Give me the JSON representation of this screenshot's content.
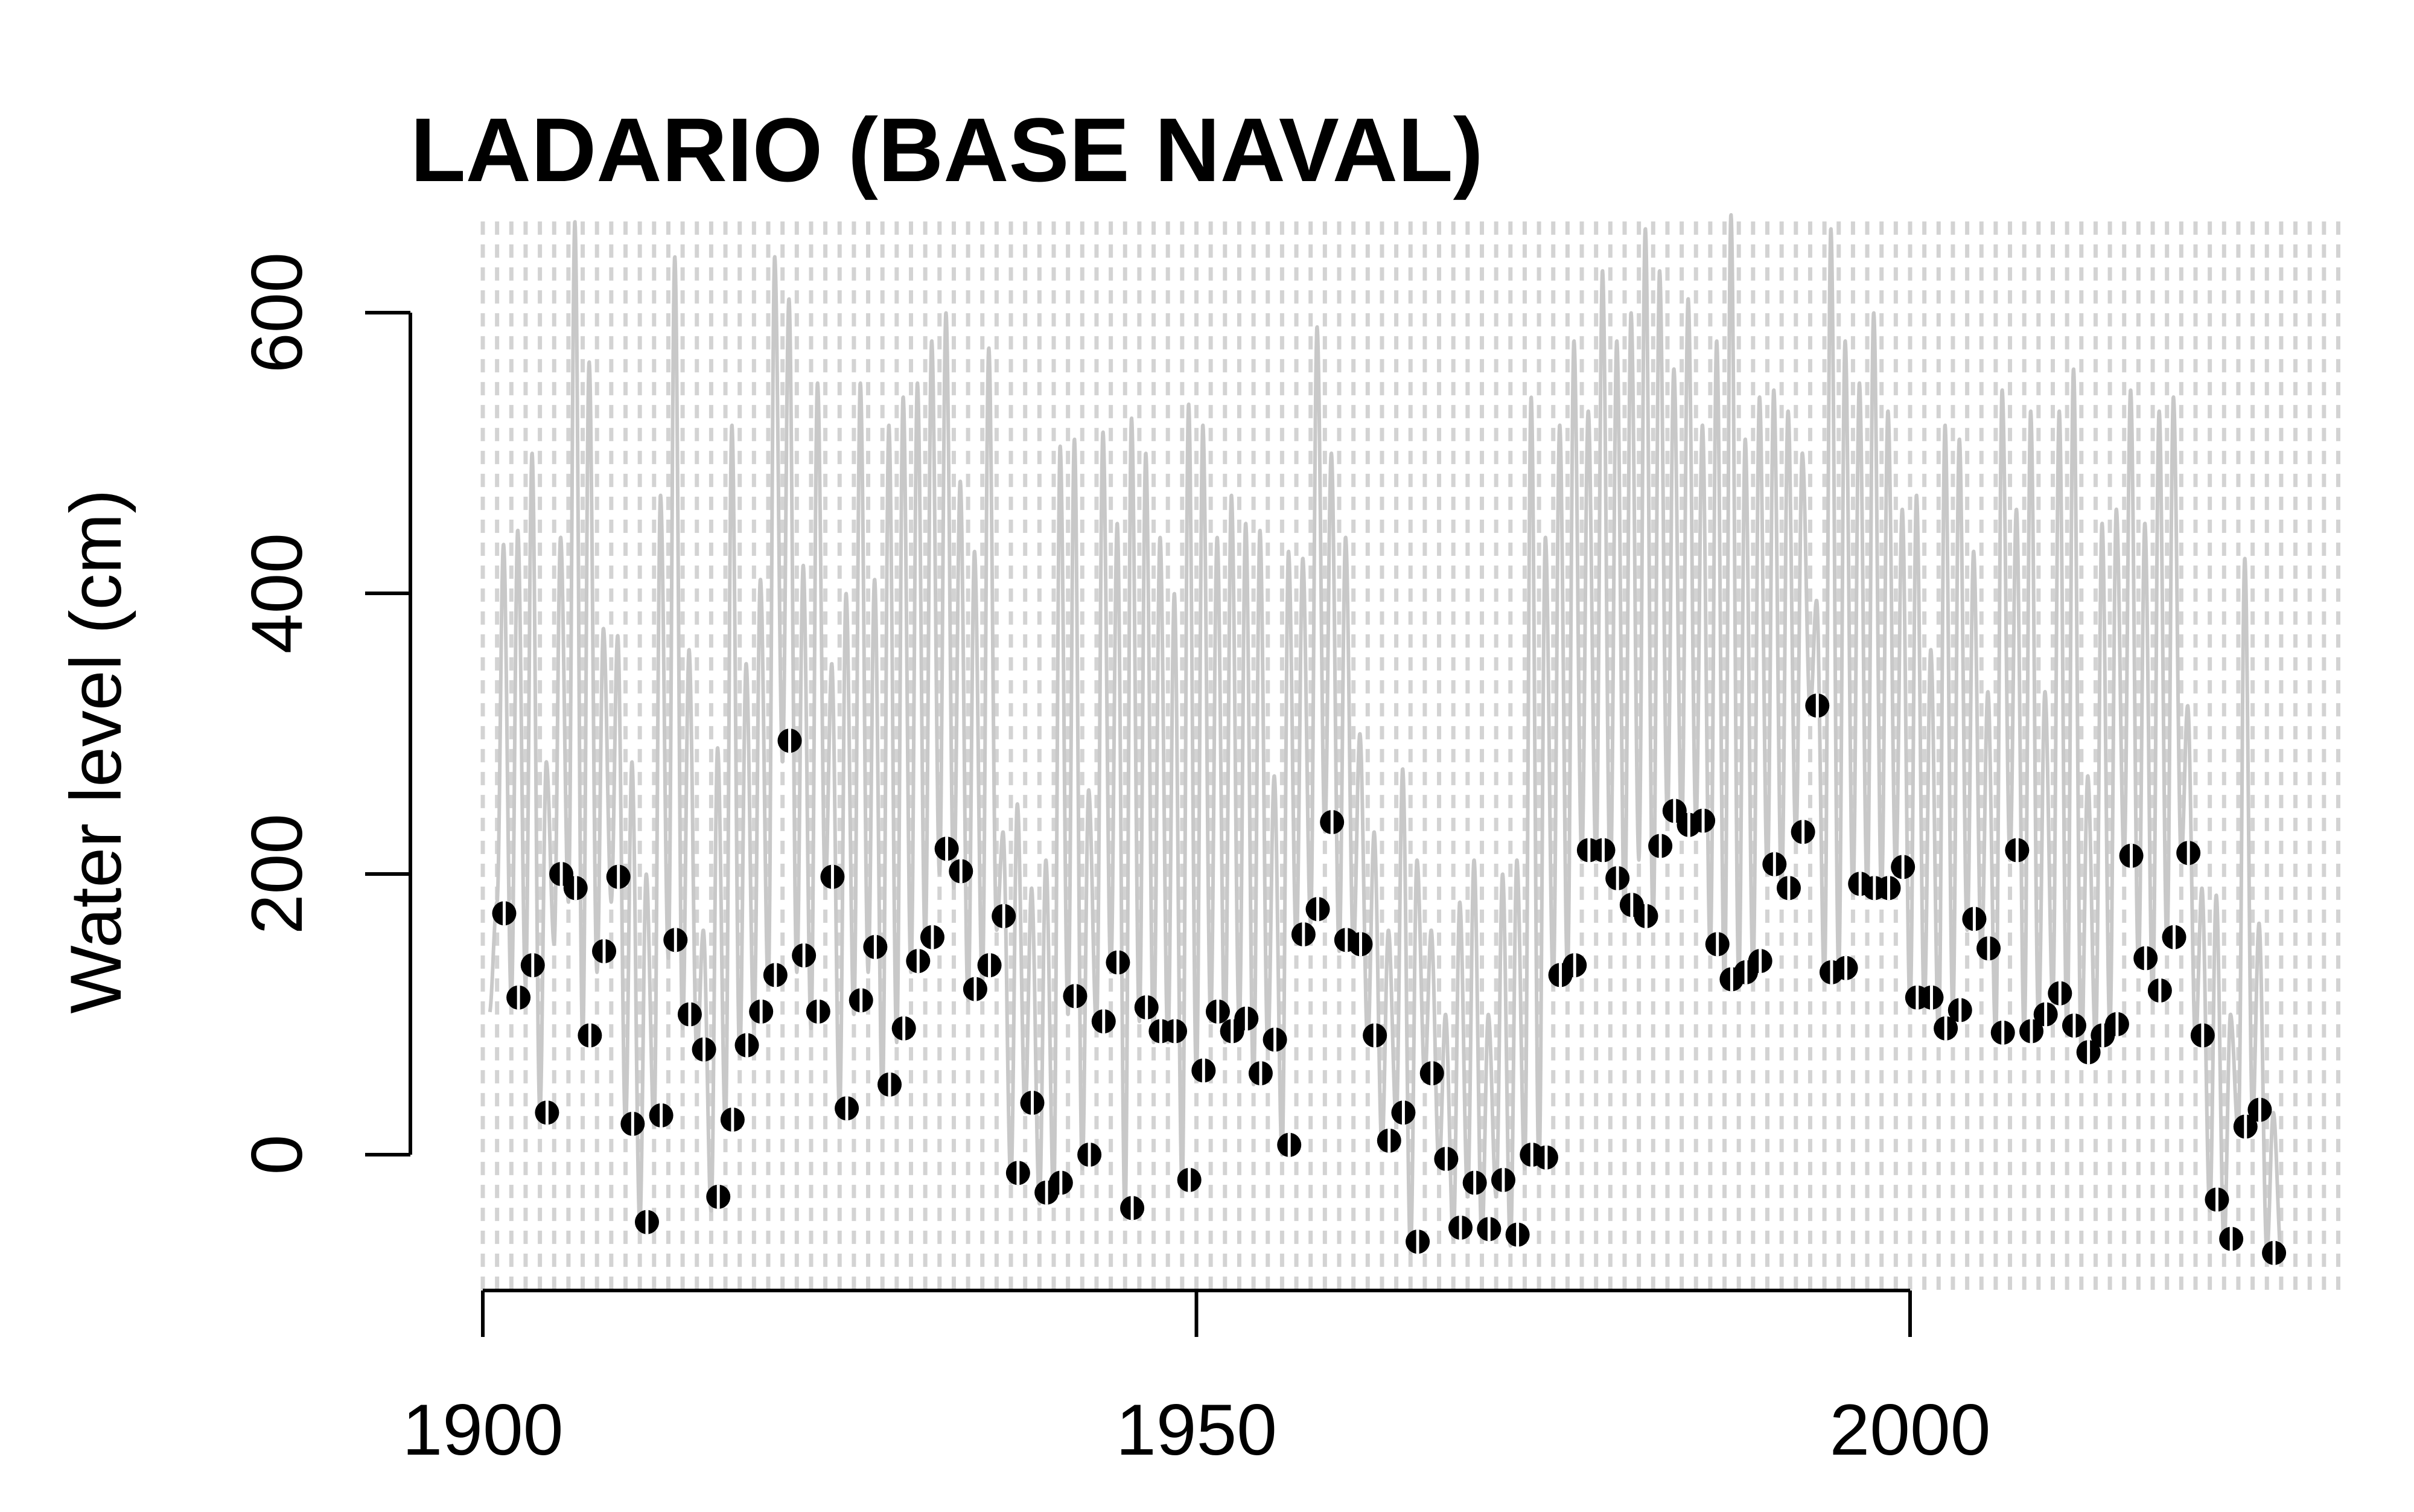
{
  "chart_data": {
    "type": "line",
    "title": "LADARIO (BASE NAVAL)",
    "xlabel": "",
    "ylabel": "Water level (cm)",
    "xlim": [
      1900,
      2030
    ],
    "ylim": [
      -80,
      665
    ],
    "x_ticks": [
      1900,
      1950,
      2000
    ],
    "x_tick_labels": [
      "1900",
      "1950",
      "2000"
    ],
    "y_ticks": [
      0,
      200,
      400,
      600
    ],
    "y_tick_labels": [
      "0",
      "200",
      "400",
      "600"
    ],
    "grid": "vertical dashed lines at each year",
    "colors": {
      "monthly_line": "#c8c8c8",
      "annual_points": "#000000",
      "grid": "#d3d3d3",
      "axis": "#000000"
    },
    "series": [
      {
        "style": "line",
        "description_color": "#c8c8c8",
        "annual_peaks": [
          [
            1901,
            435
          ],
          [
            1902,
            445
          ],
          [
            1903,
            500
          ],
          [
            1904,
            280
          ],
          [
            1905,
            440
          ],
          [
            1906,
            665
          ],
          [
            1907,
            565
          ],
          [
            1908,
            375
          ],
          [
            1909,
            370
          ],
          [
            1910,
            280
          ],
          [
            1911,
            200
          ],
          [
            1912,
            470
          ],
          [
            1913,
            640
          ],
          [
            1914,
            360
          ],
          [
            1915,
            160
          ],
          [
            1916,
            290
          ],
          [
            1917,
            520
          ],
          [
            1918,
            350
          ],
          [
            1919,
            410
          ],
          [
            1920,
            640
          ],
          [
            1921,
            610
          ],
          [
            1922,
            420
          ],
          [
            1923,
            550
          ],
          [
            1924,
            350
          ],
          [
            1925,
            400
          ],
          [
            1926,
            550
          ],
          [
            1927,
            410
          ],
          [
            1928,
            520
          ],
          [
            1929,
            540
          ],
          [
            1930,
            550
          ],
          [
            1931,
            580
          ],
          [
            1932,
            600
          ],
          [
            1933,
            480
          ],
          [
            1934,
            430
          ],
          [
            1935,
            575
          ],
          [
            1936,
            230
          ],
          [
            1937,
            250
          ],
          [
            1938,
            190
          ],
          [
            1939,
            210
          ],
          [
            1940,
            505
          ],
          [
            1941,
            510
          ],
          [
            1942,
            260
          ],
          [
            1943,
            515
          ],
          [
            1944,
            450
          ],
          [
            1945,
            525
          ],
          [
            1946,
            500
          ],
          [
            1947,
            440
          ],
          [
            1948,
            400
          ],
          [
            1949,
            535
          ],
          [
            1950,
            520
          ],
          [
            1951,
            440
          ],
          [
            1952,
            470
          ],
          [
            1953,
            450
          ],
          [
            1954,
            445
          ],
          [
            1955,
            270
          ],
          [
            1956,
            430
          ],
          [
            1957,
            425
          ],
          [
            1958,
            590
          ],
          [
            1959,
            500
          ],
          [
            1960,
            440
          ],
          [
            1961,
            300
          ],
          [
            1962,
            230
          ],
          [
            1963,
            160
          ],
          [
            1964,
            275
          ],
          [
            1965,
            210
          ],
          [
            1966,
            160
          ],
          [
            1967,
            100
          ],
          [
            1968,
            180
          ],
          [
            1969,
            210
          ],
          [
            1970,
            100
          ],
          [
            1971,
            200
          ],
          [
            1972,
            210
          ],
          [
            1973,
            540
          ],
          [
            1974,
            440
          ],
          [
            1975,
            520
          ],
          [
            1976,
            580
          ],
          [
            1977,
            530
          ],
          [
            1978,
            630
          ],
          [
            1979,
            580
          ],
          [
            1980,
            600
          ],
          [
            1981,
            660
          ],
          [
            1982,
            630
          ],
          [
            1983,
            560
          ],
          [
            1984,
            610
          ],
          [
            1985,
            520
          ],
          [
            1986,
            580
          ],
          [
            1987,
            670
          ],
          [
            1988,
            510
          ],
          [
            1989,
            540
          ],
          [
            1990,
            545
          ],
          [
            1991,
            530
          ],
          [
            1992,
            500
          ],
          [
            1993,
            395
          ],
          [
            1994,
            660
          ],
          [
            1995,
            580
          ],
          [
            1996,
            550
          ],
          [
            1997,
            600
          ],
          [
            1998,
            530
          ],
          [
            1999,
            460
          ],
          [
            2000,
            470
          ],
          [
            2001,
            360
          ],
          [
            2002,
            520
          ],
          [
            2003,
            510
          ],
          [
            2004,
            430
          ],
          [
            2005,
            330
          ],
          [
            2006,
            545
          ],
          [
            2007,
            460
          ],
          [
            2008,
            530
          ],
          [
            2009,
            330
          ],
          [
            2010,
            530
          ],
          [
            2011,
            560
          ],
          [
            2012,
            270
          ],
          [
            2013,
            450
          ],
          [
            2014,
            460
          ],
          [
            2015,
            545
          ],
          [
            2016,
            450
          ],
          [
            2017,
            530
          ],
          [
            2018,
            540
          ],
          [
            2019,
            320
          ],
          [
            2020,
            190
          ],
          [
            2021,
            185
          ],
          [
            2022,
            100
          ],
          [
            2023,
            425
          ],
          [
            2024,
            165
          ]
        ],
        "annual_troughs": [
          [
            1901,
            180
          ],
          [
            1902,
            110
          ],
          [
            1903,
            120
          ],
          [
            1904,
            30
          ],
          [
            1905,
            150
          ],
          [
            1906,
            180
          ],
          [
            1907,
            80
          ],
          [
            1908,
            130
          ],
          [
            1909,
            180
          ],
          [
            1910,
            20
          ],
          [
            1911,
            -50
          ],
          [
            1912,
            20
          ],
          [
            1913,
            140
          ],
          [
            1914,
            90
          ],
          [
            1915,
            70
          ],
          [
            1916,
            -40
          ],
          [
            1917,
            20
          ],
          [
            1918,
            70
          ],
          [
            1919,
            90
          ],
          [
            1920,
            120
          ],
          [
            1921,
            280
          ],
          [
            1922,
            130
          ],
          [
            1923,
            90
          ],
          [
            1924,
            190
          ],
          [
            1925,
            30
          ],
          [
            1926,
            100
          ],
          [
            1927,
            130
          ],
          [
            1928,
            40
          ],
          [
            1929,
            80
          ],
          [
            1930,
            130
          ],
          [
            1931,
            150
          ],
          [
            1932,
            200
          ],
          [
            1933,
            190
          ],
          [
            1934,
            110
          ],
          [
            1935,
            120
          ],
          [
            1936,
            160
          ],
          [
            1937,
            -20
          ],
          [
            1938,
            30
          ],
          [
            1939,
            -35
          ],
          [
            1940,
            -30
          ],
          [
            1941,
            100
          ],
          [
            1942,
            -10
          ],
          [
            1943,
            90
          ],
          [
            1944,
            130
          ],
          [
            1945,
            -45
          ],
          [
            1946,
            95
          ],
          [
            1947,
            80
          ],
          [
            1948,
            80
          ],
          [
            1949,
            -25
          ],
          [
            1950,
            55
          ],
          [
            1951,
            95
          ],
          [
            1952,
            80
          ],
          [
            1953,
            90
          ],
          [
            1954,
            50
          ],
          [
            1955,
            75
          ],
          [
            1956,
            0
          ],
          [
            1957,
            150
          ],
          [
            1958,
            165
          ],
          [
            1959,
            230
          ],
          [
            1960,
            145
          ],
          [
            1961,
            145
          ],
          [
            1962,
            80
          ],
          [
            1963,
            5
          ],
          [
            1964,
            25
          ],
          [
            1965,
            -70
          ],
          [
            1966,
            55
          ],
          [
            1967,
            -10
          ],
          [
            1968,
            -60
          ],
          [
            1969,
            -30
          ],
          [
            1970,
            -60
          ],
          [
            1971,
            -30
          ],
          [
            1972,
            -65
          ],
          [
            1973,
            -10
          ],
          [
            1974,
            -10
          ],
          [
            1975,
            120
          ],
          [
            1976,
            130
          ],
          [
            1977,
            210
          ],
          [
            1978,
            210
          ],
          [
            1979,
            190
          ],
          [
            1980,
            170
          ],
          [
            1981,
            210
          ],
          [
            1982,
            165
          ],
          [
            1983,
            240
          ],
          [
            1984,
            230
          ],
          [
            1985,
            235
          ],
          [
            1986,
            145
          ],
          [
            1987,
            120
          ],
          [
            1988,
            125
          ],
          [
            1989,
            130
          ],
          [
            1990,
            200
          ],
          [
            1991,
            185
          ],
          [
            1992,
            225
          ],
          [
            1993,
            315
          ],
          [
            1994,
            125
          ],
          [
            1995,
            130
          ],
          [
            1996,
            185
          ],
          [
            1997,
            185
          ],
          [
            1998,
            185
          ],
          [
            1999,
            200
          ],
          [
            2000,
            105
          ],
          [
            2001,
            105
          ],
          [
            2002,
            85
          ],
          [
            2003,
            100
          ],
          [
            2004,
            160
          ],
          [
            2005,
            140
          ],
          [
            2006,
            85
          ],
          [
            2007,
            210
          ],
          [
            2008,
            85
          ],
          [
            2009,
            95
          ],
          [
            2010,
            110
          ],
          [
            2011,
            85
          ],
          [
            2012,
            70
          ],
          [
            2013,
            80
          ],
          [
            2014,
            90
          ],
          [
            2015,
            210
          ],
          [
            2016,
            135
          ],
          [
            2017,
            110
          ],
          [
            2018,
            150
          ],
          [
            2019,
            210
          ],
          [
            2020,
            80
          ],
          [
            2021,
            -40
          ],
          [
            2022,
            -65
          ],
          [
            2023,
            15
          ],
          [
            2024,
            25
          ],
          [
            2025,
            -70
          ]
        ]
      },
      {
        "style": "points",
        "description_color": "#000000",
        "x": [
          1901,
          1902,
          1903,
          1904,
          1905,
          1906,
          1907,
          1908,
          1909,
          1910,
          1911,
          1912,
          1913,
          1914,
          1915,
          1916,
          1917,
          1918,
          1919,
          1920,
          1921,
          1922,
          1923,
          1924,
          1925,
          1926,
          1927,
          1928,
          1929,
          1930,
          1931,
          1932,
          1933,
          1934,
          1935,
          1936,
          1937,
          1938,
          1939,
          1940,
          1941,
          1942,
          1943,
          1944,
          1945,
          1946,
          1947,
          1948,
          1949,
          1950,
          1951,
          1952,
          1953,
          1954,
          1955,
          1956,
          1957,
          1958,
          1959,
          1960,
          1961,
          1962,
          1963,
          1964,
          1965,
          1966,
          1967,
          1968,
          1969,
          1970,
          1971,
          1972,
          1973,
          1974,
          1975,
          1976,
          1977,
          1978,
          1979,
          1980,
          1981,
          1982,
          1983,
          1984,
          1985,
          1986,
          1987,
          1988,
          1989,
          1990,
          1991,
          1992,
          1993,
          1994,
          1995,
          1996,
          1997,
          1998,
          1999,
          2000,
          2001,
          2002,
          2003,
          2004,
          2005,
          2006,
          2007,
          2008,
          2009,
          2010,
          2011,
          2012,
          2013,
          2014,
          2015,
          2016,
          2017,
          2018,
          2019,
          2020,
          2021,
          2022,
          2023,
          2024,
          2025
        ],
        "y": [
          172,
          112,
          135,
          30,
          200,
          190,
          85,
          145,
          198,
          22,
          -48,
          28,
          153,
          100,
          75,
          -30,
          25,
          78,
          102,
          128,
          295,
          142,
          102,
          198,
          33,
          110,
          148,
          50,
          90,
          138,
          155,
          218,
          202,
          118,
          135,
          170,
          -13,
          37,
          -27,
          -20,
          113,
          0,
          95,
          137,
          -38,
          105,
          88,
          88,
          -18,
          60,
          102,
          88,
          97,
          58,
          82,
          7,
          157,
          175,
          237,
          153,
          150,
          85,
          10,
          30,
          -62,
          58,
          -3,
          -52,
          -20,
          -53,
          -18,
          -57,
          0,
          -2,
          128,
          135,
          217,
          217,
          197,
          178,
          170,
          220,
          245,
          235,
          238,
          150,
          125,
          130,
          138,
          207,
          190,
          230,
          320,
          130,
          133,
          193,
          190,
          190,
          205,
          112,
          112,
          90,
          103,
          168,
          147,
          87,
          217,
          88,
          100,
          115,
          92,
          73,
          85,
          93,
          213,
          140,
          117,
          155,
          215,
          85,
          -32,
          -60,
          20,
          32,
          -70
        ]
      }
    ]
  }
}
